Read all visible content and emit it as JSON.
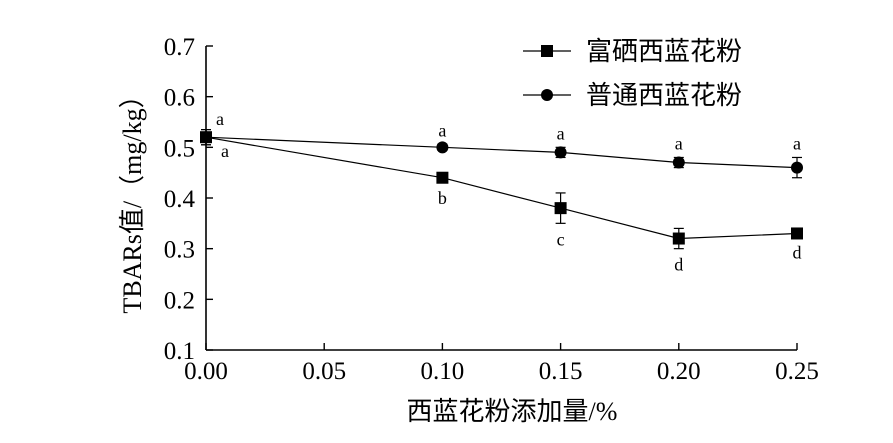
{
  "chart_data": {
    "type": "line",
    "xlabel": "西蓝花粉添加量/%",
    "ylabel": "TBARs值/（mg/kg）",
    "x": [
      0.0,
      0.1,
      0.15,
      0.2,
      0.25
    ],
    "xlim": [
      0.0,
      0.25
    ],
    "ylim": [
      0.1,
      0.7
    ],
    "x_ticks": [
      "0.00",
      "0.05",
      "0.10",
      "0.15",
      "0.20",
      "0.25"
    ],
    "y_ticks": [
      "0.1",
      "0.2",
      "0.3",
      "0.4",
      "0.5",
      "0.6",
      "0.7"
    ],
    "grid": false,
    "legend_position": "top-right",
    "series": [
      {
        "name": "富硒西蓝花粉",
        "marker": "square",
        "values": [
          0.52,
          0.44,
          0.38,
          0.32,
          0.33
        ],
        "errors": [
          0.015,
          0.008,
          0.03,
          0.02,
          0.006
        ],
        "labels": [
          "a",
          "b",
          "c",
          "d",
          "d"
        ]
      },
      {
        "name": "普通西蓝花粉",
        "marker": "circle",
        "values": [
          0.52,
          0.5,
          0.49,
          0.47,
          0.46
        ],
        "errors": [
          0.015,
          0.006,
          0.01,
          0.01,
          0.02
        ],
        "labels": [
          "a",
          "a",
          "a",
          "a",
          "a"
        ]
      }
    ]
  }
}
